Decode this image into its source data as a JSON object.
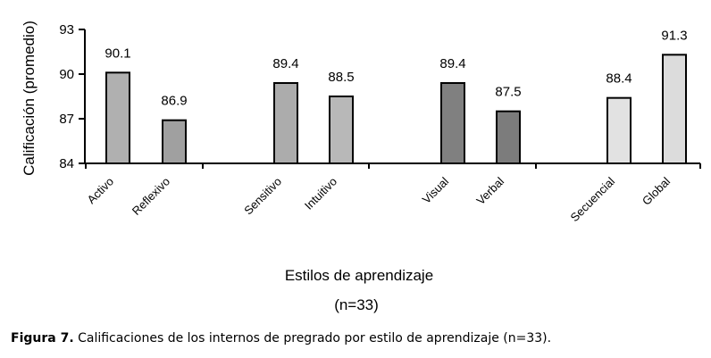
{
  "chart_data": {
    "type": "bar",
    "categories": [
      "Activo",
      "Reflexivo",
      "Sensitivo",
      "Intuitivo",
      "Visual",
      "Verbal",
      "Secuencial",
      "Global"
    ],
    "values": [
      90.1,
      86.9,
      89.4,
      88.5,
      89.4,
      87.5,
      88.4,
      91.3
    ],
    "value_labels": [
      "90.1",
      "86.9",
      "89.4",
      "88.5",
      "89.4",
      "87.5",
      "88.4",
      "91.3"
    ],
    "bar_colors": [
      "#b0b0b0",
      "#a0a0a0",
      "#acacac",
      "#b8b8b8",
      "#808080",
      "#7c7c7c",
      "#e2e2e2",
      "#dcdcdc"
    ],
    "ylim": [
      84,
      93
    ],
    "yticks": [
      84,
      87,
      90,
      93
    ],
    "ylabel": "Calificación (promedio)",
    "xlabel": "Estilos de aprendizaje",
    "xlabel_sub": "(n=33)",
    "grid": false,
    "legend": "none"
  },
  "caption": {
    "prefix": "Figura 7.",
    "text": " Calificaciones de los internos de pregrado por estilo de aprendizaje (n=33)."
  }
}
